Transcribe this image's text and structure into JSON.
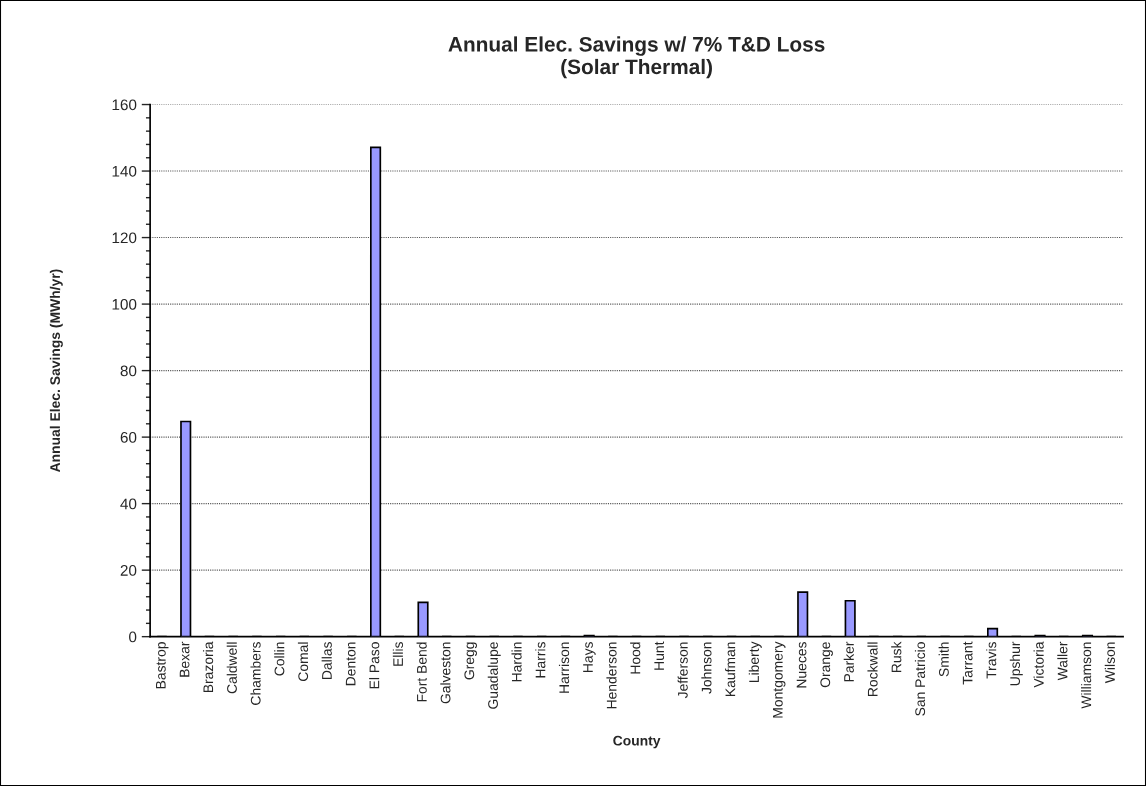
{
  "chart_data": {
    "type": "bar",
    "title": "Annual Elec. Savings w/ 7% T&D Loss\n(Solar Thermal)",
    "xlabel": "County",
    "ylabel": "Annual Elec. Savings (MWh/yr)",
    "categories": [
      "Bastrop",
      "Bexar",
      "Brazoria",
      "Caldwell",
      "Chambers",
      "Collin",
      "Comal",
      "Dallas",
      "Denton",
      "El Paso",
      "Ellis",
      "Fort Bend",
      "Galveston",
      "Gregg",
      "Guadalupe",
      "Hardin",
      "Harris",
      "Harrison",
      "Hays",
      "Henderson",
      "Hood",
      "Hunt",
      "Jefferson",
      "Johnson",
      "Kaufman",
      "Liberty",
      "Montgomery",
      "Nueces",
      "Orange",
      "Parker",
      "Rockwall",
      "Rusk",
      "San Patricio",
      "Smith",
      "Tarrant",
      "Travis",
      "Upshur",
      "Victoria",
      "Waller",
      "Williamson",
      "Wilson"
    ],
    "values": [
      0,
      64.7,
      0,
      0,
      0,
      0,
      0,
      0,
      0,
      147.1,
      0,
      10.3,
      0,
      0,
      0,
      0,
      0,
      0,
      0.3,
      0,
      0,
      0,
      0,
      0,
      0,
      0,
      0,
      13.4,
      0,
      10.8,
      0,
      0,
      0,
      0,
      0,
      2.4,
      0,
      0.3,
      0,
      0.3,
      0
    ],
    "color": "#9999ff",
    "ylim": [
      0,
      160
    ],
    "yticks": [
      0,
      20,
      40,
      60,
      80,
      100,
      120,
      140,
      160
    ],
    "grid": "y"
  }
}
